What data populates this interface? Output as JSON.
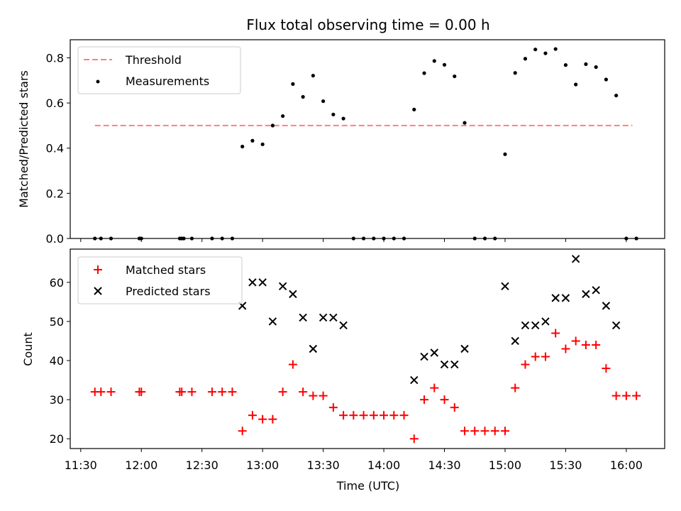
{
  "chart_data": [
    {
      "type": "scatter",
      "panel": "top",
      "title": "Flux total observing time = 0.00 h",
      "ylabel": "Matched/Predicted stars",
      "xlabel": "",
      "ylim": [
        0,
        0.88
      ],
      "yticks": [
        "0.0",
        "0.2",
        "0.4",
        "0.6",
        "0.8"
      ],
      "ytick_values": [
        0,
        0.2,
        0.4,
        0.6,
        0.8
      ],
      "legend_position": "upper-left",
      "threshold": {
        "name": "Threshold",
        "value": 0.5,
        "x_start": "11:37",
        "x_end": "16:03",
        "color": "#ff8080"
      },
      "series": [
        {
          "name": "Measurements",
          "color": "#000000",
          "points": [
            [
              "11:37",
              0.0
            ],
            [
              "11:40",
              0.0
            ],
            [
              "11:45",
              0.0
            ],
            [
              "11:59",
              0.0
            ],
            [
              "12:00",
              0.0
            ],
            [
              "12:19",
              0.0
            ],
            [
              "12:20",
              0.0
            ],
            [
              "12:21",
              0.0
            ],
            [
              "12:25",
              0.0
            ],
            [
              "12:35",
              0.0
            ],
            [
              "12:40",
              0.0
            ],
            [
              "12:45",
              0.0
            ],
            [
              "12:50",
              0.407
            ],
            [
              "12:55",
              0.433
            ],
            [
              "13:00",
              0.417
            ],
            [
              "13:05",
              0.5
            ],
            [
              "13:10",
              0.542
            ],
            [
              "13:15",
              0.684
            ],
            [
              "13:20",
              0.627
            ],
            [
              "13:25",
              0.721
            ],
            [
              "13:30",
              0.608
            ],
            [
              "13:35",
              0.549
            ],
            [
              "13:40",
              0.531
            ],
            [
              "13:45",
              0.0
            ],
            [
              "13:50",
              0.0
            ],
            [
              "13:55",
              0.0
            ],
            [
              "14:00",
              0.0
            ],
            [
              "14:05",
              0.0
            ],
            [
              "14:10",
              0.0
            ],
            [
              "14:15",
              0.571
            ],
            [
              "14:20",
              0.732
            ],
            [
              "14:25",
              0.786
            ],
            [
              "14:30",
              0.769
            ],
            [
              "14:35",
              0.718
            ],
            [
              "14:40",
              0.512
            ],
            [
              "14:45",
              0.0
            ],
            [
              "14:50",
              0.0
            ],
            [
              "14:55",
              0.0
            ],
            [
              "15:00",
              0.373
            ],
            [
              "15:05",
              0.733
            ],
            [
              "15:10",
              0.796
            ],
            [
              "15:15",
              0.837
            ],
            [
              "15:20",
              0.82
            ],
            [
              "15:25",
              0.839
            ],
            [
              "15:30",
              0.768
            ],
            [
              "15:35",
              0.682
            ],
            [
              "15:40",
              0.772
            ],
            [
              "15:45",
              0.759
            ],
            [
              "15:50",
              0.704
            ],
            [
              "15:55",
              0.633
            ],
            [
              "16:00",
              0.0
            ],
            [
              "16:05",
              0.0
            ]
          ]
        }
      ]
    },
    {
      "type": "scatter",
      "panel": "bottom",
      "title": "",
      "ylabel": "Count",
      "xlabel": "Time (UTC)",
      "ylim": [
        17.5,
        68.5
      ],
      "yticks": [
        "20",
        "30",
        "40",
        "50",
        "60"
      ],
      "ytick_values": [
        20,
        30,
        40,
        50,
        60
      ],
      "xticks": [
        "11:30",
        "12:00",
        "12:30",
        "13:00",
        "13:30",
        "14:00",
        "14:30",
        "15:00",
        "15:30",
        "16:00"
      ],
      "legend_position": "upper-left",
      "series": [
        {
          "name": "Matched stars",
          "color": "#ff0000",
          "marker": "plus",
          "points": [
            [
              "11:37",
              32
            ],
            [
              "11:40",
              32
            ],
            [
              "11:45",
              32
            ],
            [
              "11:59",
              32
            ],
            [
              "12:00",
              32
            ],
            [
              "12:19",
              32
            ],
            [
              "12:20",
              32
            ],
            [
              "12:25",
              32
            ],
            [
              "12:35",
              32
            ],
            [
              "12:40",
              32
            ],
            [
              "12:45",
              32
            ],
            [
              "12:50",
              22
            ],
            [
              "12:55",
              26
            ],
            [
              "13:00",
              25
            ],
            [
              "13:05",
              25
            ],
            [
              "13:10",
              32
            ],
            [
              "13:15",
              39
            ],
            [
              "13:20",
              32
            ],
            [
              "13:25",
              31
            ],
            [
              "13:30",
              31
            ],
            [
              "13:35",
              28
            ],
            [
              "13:40",
              26
            ],
            [
              "13:45",
              26
            ],
            [
              "13:50",
              26
            ],
            [
              "13:55",
              26
            ],
            [
              "14:00",
              26
            ],
            [
              "14:05",
              26
            ],
            [
              "14:10",
              26
            ],
            [
              "14:15",
              20
            ],
            [
              "14:20",
              30
            ],
            [
              "14:25",
              33
            ],
            [
              "14:30",
              30
            ],
            [
              "14:35",
              28
            ],
            [
              "14:40",
              22
            ],
            [
              "14:45",
              22
            ],
            [
              "14:50",
              22
            ],
            [
              "14:55",
              22
            ],
            [
              "15:00",
              22
            ],
            [
              "15:05",
              33
            ],
            [
              "15:10",
              39
            ],
            [
              "15:15",
              41
            ],
            [
              "15:20",
              41
            ],
            [
              "15:25",
              47
            ],
            [
              "15:30",
              43
            ],
            [
              "15:35",
              45
            ],
            [
              "15:40",
              44
            ],
            [
              "15:45",
              44
            ],
            [
              "15:50",
              38
            ],
            [
              "15:55",
              31
            ],
            [
              "16:00",
              31
            ],
            [
              "16:05",
              31
            ]
          ]
        },
        {
          "name": "Predicted stars",
          "color": "#000000",
          "marker": "x",
          "points": [
            [
              "12:50",
              54
            ],
            [
              "12:55",
              60
            ],
            [
              "13:00",
              60
            ],
            [
              "13:05",
              50
            ],
            [
              "13:10",
              59
            ],
            [
              "13:15",
              57
            ],
            [
              "13:20",
              51
            ],
            [
              "13:25",
              43
            ],
            [
              "13:30",
              51
            ],
            [
              "13:35",
              51
            ],
            [
              "13:40",
              49
            ],
            [
              "14:15",
              35
            ],
            [
              "14:20",
              41
            ],
            [
              "14:25",
              42
            ],
            [
              "14:30",
              39
            ],
            [
              "14:35",
              39
            ],
            [
              "14:40",
              43
            ],
            [
              "15:00",
              59
            ],
            [
              "15:05",
              45
            ],
            [
              "15:10",
              49
            ],
            [
              "15:15",
              49
            ],
            [
              "15:20",
              50
            ],
            [
              "15:25",
              56
            ],
            [
              "15:30",
              56
            ],
            [
              "15:35",
              66
            ],
            [
              "15:40",
              57
            ],
            [
              "15:45",
              58
            ],
            [
              "15:50",
              54
            ],
            [
              "15:55",
              49
            ]
          ]
        }
      ]
    }
  ]
}
